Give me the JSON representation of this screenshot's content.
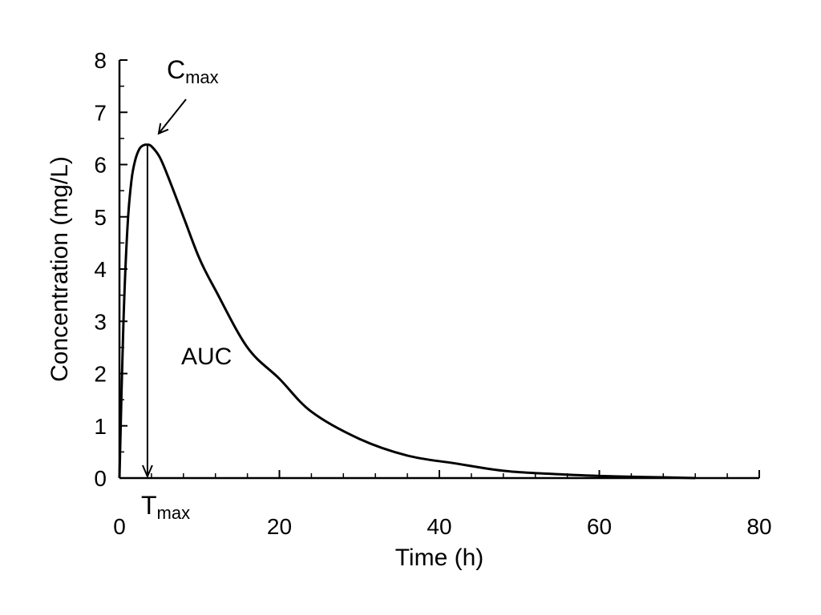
{
  "chart_data": {
    "type": "line",
    "title": "",
    "xlabel": "Time (h)",
    "ylabel": "Concentration (mg/L)",
    "xlim": [
      0,
      80
    ],
    "ylim": [
      0,
      8
    ],
    "x_ticks": [
      "0",
      "20",
      "40",
      "60",
      "80"
    ],
    "y_ticks": [
      "0",
      "1",
      "2",
      "3",
      "4",
      "5",
      "6",
      "7",
      "8"
    ],
    "grid": false,
    "series": [
      {
        "x": [
          0,
          0.5,
          1,
          1.5,
          2,
          2.5,
          3,
          3.5,
          4,
          5,
          6,
          8,
          10,
          12,
          16,
          20,
          24,
          30,
          36,
          42,
          48,
          54,
          60,
          66,
          72
        ],
        "y": [
          0,
          3.0,
          4.8,
          5.7,
          6.1,
          6.3,
          6.37,
          6.38,
          6.35,
          6.15,
          5.8,
          5.0,
          4.2,
          3.6,
          2.5,
          1.9,
          1.27,
          0.75,
          0.43,
          0.28,
          0.14,
          0.08,
          0.04,
          0.02,
          0.0
        ]
      }
    ],
    "annotations": {
      "cmax": {
        "main": "C",
        "sub": "max"
      },
      "tmax": {
        "main": "T",
        "sub": "max"
      },
      "auc": "AUC"
    },
    "tmax_x": 3.5
  },
  "colors": {
    "line": "#000000",
    "background": "#ffffff"
  }
}
